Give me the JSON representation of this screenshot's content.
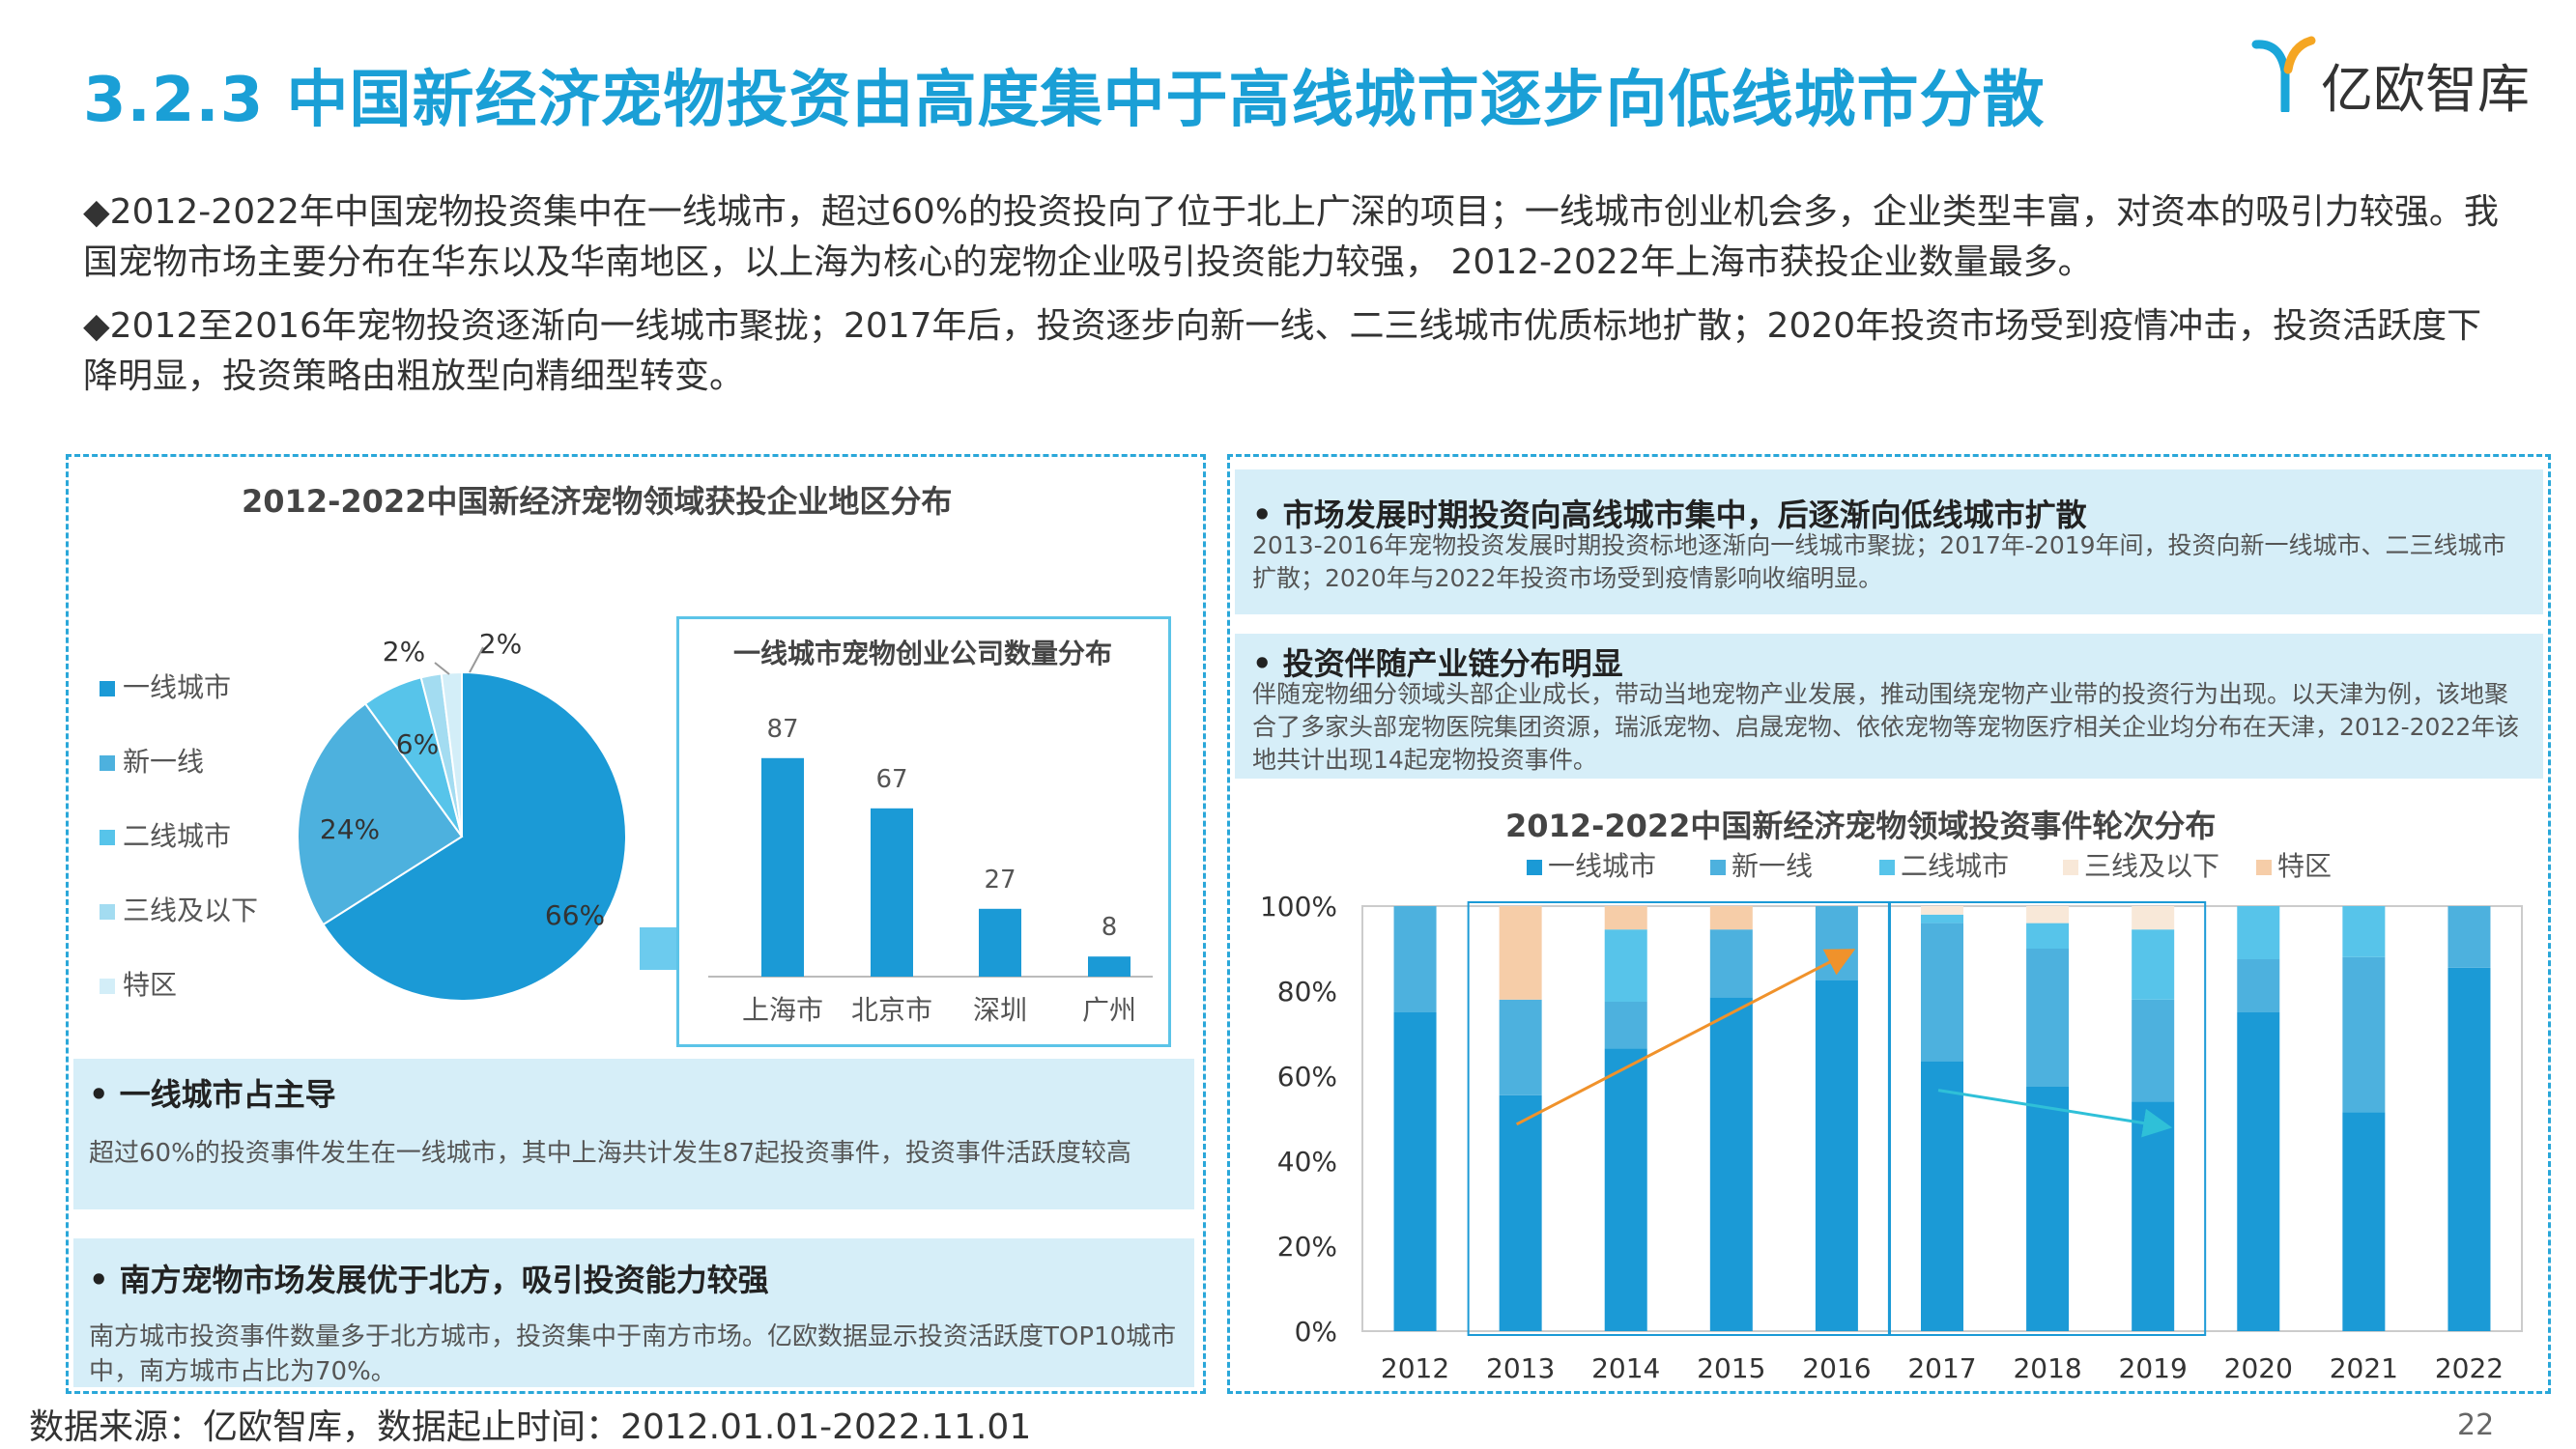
{
  "header": {
    "title": "3.2.3 中国新经济宠物投资由高度集中于高线城市逐步向低线城市分散",
    "logo_text": "亿欧智库",
    "brand_color": "#1a9fd6"
  },
  "intro": {
    "p1": "◆2012-2022年中国宠物投资集中在一线城市，超过60%的投资投向了位于北上广深的项目；一线城市创业机会多，企业类型丰富，对资本的吸引力较强。我国宠物市场主要分布在华东以及华南地区，以上海为核心的宠物企业吸引投资能力较强， 2012-2022年上海市获投企业数量最多。",
    "p2": "◆2012至2016年宠物投资逐渐向一线城市聚拢；2017年后，投资逐步向新一线、二三线城市优质标地扩散；2020年投资市场受到疫情冲击，投资活跃度下降明显，投资策略由粗放型向精细型转变。"
  },
  "left_panel": {
    "title": "2012-2022中国新经济宠物领域获投企业地区分布",
    "notes": [
      {
        "head": "•     一线城市占主导",
        "body": "超过60%的投资事件发生在一线城市，其中上海共计发生87起投资事件，投资事件活跃度较高"
      },
      {
        "head": "• 南方宠物市场发展优于北方，吸引投资能力较强",
        "body": "南方城市投资事件数量多于北方城市，投资集中于南方市场。亿欧数据显示投资活跃度TOP10城市中，南方城市占比为70%。"
      }
    ]
  },
  "right_panel": {
    "notes": [
      {
        "head": "•     市场发展时期投资向高线城市集中，后逐渐向低线城市扩散",
        "body": "2013-2016年宠物投资发展时期投资标地逐渐向一线城市聚拢；2017年-2019年间，投资向新一线城市、二三线城市扩散；2020年与2022年投资市场受到疫情影响收缩明显。"
      },
      {
        "head": "•     投资伴随产业链分布明显",
        "body": "伴随宠物细分领域头部企业成长，带动当地宠物产业发展，推动围绕宠物产业带的投资行为出现。以天津为例，该地聚合了多家头部宠物医院集团资源，瑞派宠物、启晟宠物、依依宠物等宠物医疗相关企业均分布在天津，2012-2022年该地共计出现14起宠物投资事件。"
      }
    ]
  },
  "footer": {
    "source": "数据来源：亿欧智库，数据起止时间：2012.01.01-2022.11.01",
    "page": "22"
  },
  "chart_data": [
    {
      "type": "pie",
      "title": "2012-2022中国新经济宠物领域获投企业地区分布",
      "categories": [
        "一线城市",
        "新一线",
        "二线城市",
        "三线及以下",
        "特区"
      ],
      "values": [
        66,
        24,
        6,
        2,
        2
      ],
      "labels": [
        "66%",
        "24%",
        "6%",
        "2%",
        "2%"
      ],
      "colors": [
        "#1b9ad6",
        "#4db1de",
        "#57c4ea",
        "#a3dcf1",
        "#d3eef8"
      ],
      "legend": "left"
    },
    {
      "type": "bar",
      "title": "一线城市宠物创业公司数量分布",
      "categories": [
        "上海市",
        "北京市",
        "深圳",
        "广州"
      ],
      "values": [
        87,
        67,
        27,
        8
      ],
      "color": "#1b9ad6"
    },
    {
      "type": "bar",
      "stacked": true,
      "percent": true,
      "title": "2012-2022中国新经济宠物领域投资事件轮次分布",
      "categories": [
        "2012",
        "2013",
        "2014",
        "2015",
        "2016",
        "2017",
        "2018",
        "2019",
        "2020",
        "2021",
        "2022"
      ],
      "y_ticks": [
        "0%",
        "20%",
        "40%",
        "60%",
        "80%",
        "100%"
      ],
      "ylim": [
        0,
        100
      ],
      "legend": "top",
      "series": [
        {
          "name": "一线城市",
          "color": "#1b9ad6",
          "values": [
            75,
            55.5,
            66.5,
            78.5,
            82.5,
            63.5,
            57.5,
            54,
            75,
            51.5,
            85.5
          ]
        },
        {
          "name": "新一线",
          "color": "#4db1de",
          "values": [
            25,
            22.5,
            11,
            16,
            17.5,
            32.5,
            32.5,
            24,
            12.5,
            36.5,
            14.5
          ]
        },
        {
          "name": "二线城市",
          "color": "#57c4ea",
          "values": [
            0,
            0,
            17,
            0,
            0,
            2,
            6,
            16.5,
            12.5,
            12,
            0
          ]
        },
        {
          "name": "三线及以下",
          "color": "#f8e8d8",
          "values": [
            0,
            0,
            0,
            0,
            0,
            2,
            4,
            5.5,
            0,
            0,
            0
          ]
        },
        {
          "name": "特区",
          "color": "#f6cda8",
          "values": [
            0,
            22,
            5.5,
            5.5,
            0,
            0,
            0,
            0,
            0,
            0,
            0
          ]
        }
      ],
      "highlight_groups": [
        [
          "2013",
          "2016"
        ],
        [
          "2017",
          "2019"
        ]
      ],
      "trend_arrows": [
        {
          "from": "2013",
          "to": "2016",
          "color": "#f0922b"
        },
        {
          "from": "2017",
          "to": "2019",
          "color": "#2fc0d8"
        }
      ]
    }
  ]
}
